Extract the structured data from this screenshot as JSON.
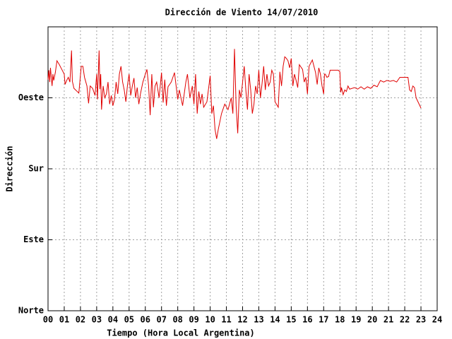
{
  "chart_data": {
    "type": "line",
    "title": "Dirección de Viento 14/07/2010",
    "x_label": "Tiempo (Hora Local Argentina)",
    "y_label": "Dirección",
    "xlim": [
      0,
      24
    ],
    "xticks": [
      {
        "value": 0,
        "label": "00"
      },
      {
        "value": 1,
        "label": "01"
      },
      {
        "value": 2,
        "label": "02"
      },
      {
        "value": 3,
        "label": "03"
      },
      {
        "value": 4,
        "label": "04"
      },
      {
        "value": 5,
        "label": "05"
      },
      {
        "value": 6,
        "label": "06"
      },
      {
        "value": 7,
        "label": "07"
      },
      {
        "value": 8,
        "label": "08"
      },
      {
        "value": 9,
        "label": "09"
      },
      10,
      11,
      12,
      13,
      14,
      15,
      16,
      17,
      18,
      19,
      20,
      21,
      22,
      23,
      24
    ],
    "ylim": [
      0,
      360
    ],
    "yticks": [
      {
        "value": 0,
        "label": "Norte"
      },
      {
        "value": 90,
        "label": "Este"
      },
      {
        "value": 180,
        "label": "Sur"
      },
      {
        "value": 270,
        "label": "Oeste"
      }
    ],
    "grid": true,
    "x": [
      0.0,
      0.05,
      0.1,
      0.15,
      0.2,
      0.25,
      0.3,
      0.35,
      0.45,
      0.55,
      0.7,
      0.85,
      1.0,
      1.05,
      1.15,
      1.25,
      1.35,
      1.45,
      1.5,
      1.6,
      1.9,
      2.05,
      2.15,
      2.25,
      2.4,
      2.5,
      2.6,
      2.75,
      2.9,
      3.0,
      3.05,
      3.15,
      3.2,
      3.25,
      3.3,
      3.4,
      3.5,
      3.6,
      3.7,
      3.8,
      3.9,
      4.0,
      4.1,
      4.2,
      4.3,
      4.4,
      4.5,
      4.6,
      4.7,
      4.8,
      4.9,
      5.0,
      5.1,
      5.2,
      5.3,
      5.4,
      5.5,
      5.6,
      5.7,
      5.85,
      6.0,
      6.1,
      6.2,
      6.3,
      6.4,
      6.5,
      6.6,
      6.7,
      6.85,
      7.0,
      7.1,
      7.2,
      7.3,
      7.4,
      7.6,
      7.8,
      8.0,
      8.1,
      8.3,
      8.5,
      8.6,
      8.75,
      8.9,
      9.0,
      9.1,
      9.2,
      9.3,
      9.4,
      9.5,
      9.6,
      9.8,
      10.0,
      10.1,
      10.2,
      10.3,
      10.4,
      10.5,
      10.7,
      10.9,
      11.1,
      11.3,
      11.4,
      11.5,
      11.6,
      11.7,
      11.8,
      11.9,
      12.0,
      12.1,
      12.2,
      12.3,
      12.4,
      12.5,
      12.6,
      12.7,
      12.8,
      12.9,
      13.0,
      13.1,
      13.2,
      13.3,
      13.4,
      13.5,
      13.6,
      13.7,
      13.8,
      13.9,
      14.0,
      14.2,
      14.3,
      14.4,
      14.5,
      14.6,
      14.7,
      14.8,
      14.9,
      15.0,
      15.1,
      15.2,
      15.3,
      15.4,
      15.5,
      15.7,
      15.8,
      15.9,
      16.0,
      16.1,
      16.3,
      16.5,
      16.6,
      16.7,
      16.8,
      16.9,
      17.0,
      17.05,
      17.1,
      17.2,
      17.3,
      17.4,
      17.6,
      17.9,
      18.0,
      18.05,
      18.1,
      18.2,
      18.3,
      18.4,
      18.5,
      18.6,
      18.9,
      19.1,
      19.3,
      19.5,
      19.7,
      19.9,
      20.1,
      20.3,
      20.5,
      20.7,
      20.9,
      21.1,
      21.3,
      21.5,
      21.7,
      22.0,
      22.2,
      22.3,
      22.4,
      22.5,
      22.6,
      22.7,
      23.0
    ],
    "series": [
      {
        "color": "#e00000",
        "values": [
          293,
          305,
          290,
          308,
          296,
          285,
          300,
          292,
          302,
          317,
          312,
          306,
          300,
          287,
          292,
          296,
          290,
          330,
          291,
          282,
          276,
          310,
          310,
          296,
          285,
          263,
          285,
          282,
          273,
          300,
          268,
          330,
          281,
          300,
          255,
          285,
          270,
          275,
          290,
          262,
          273,
          260,
          268,
          290,
          275,
          300,
          310,
          290,
          280,
          265,
          286,
          300,
          273,
          285,
          295,
          270,
          283,
          262,
          275,
          290,
          300,
          306,
          286,
          248,
          300,
          258,
          285,
          290,
          270,
          302,
          264,
          293,
          260,
          284,
          290,
          302,
          268,
          280,
          260,
          290,
          300,
          270,
          285,
          262,
          300,
          250,
          278,
          262,
          275,
          258,
          265,
          298,
          250,
          260,
          230,
          218,
          230,
          250,
          262,
          255,
          270,
          250,
          332,
          260,
          225,
          280,
          270,
          290,
          310,
          280,
          255,
          300,
          280,
          250,
          262,
          285,
          275,
          305,
          270,
          288,
          310,
          280,
          300,
          285,
          290,
          305,
          300,
          265,
          258,
          303,
          285,
          310,
          322,
          320,
          317,
          308,
          320,
          285,
          300,
          292,
          283,
          312,
          306,
          290,
          296,
          275,
          310,
          318,
          302,
          287,
          308,
          300,
          285,
          275,
          300,
          300,
          296,
          297,
          305,
          305,
          305,
          303,
          277,
          283,
          274,
          280,
          278,
          285,
          281,
          283,
          281,
          284,
          281,
          284,
          282,
          286,
          284,
          292,
          290,
          292,
          291,
          292,
          290,
          296,
          296,
          296,
          280,
          278,
          285,
          283,
          270,
          257
        ]
      }
    ]
  }
}
